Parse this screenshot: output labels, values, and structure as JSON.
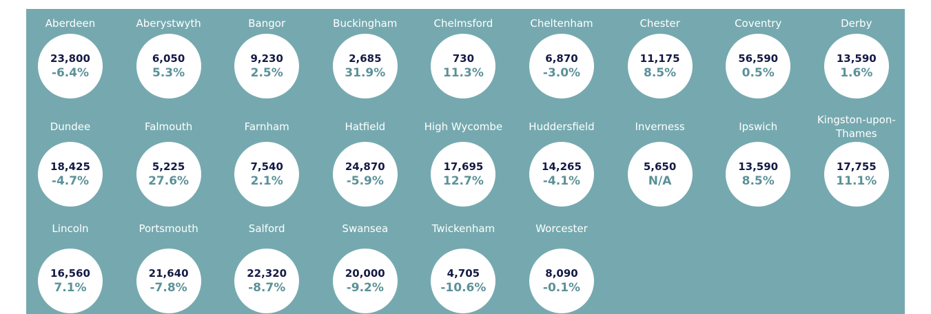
{
  "cities": [
    {
      "name": "Aberdeen",
      "value": "23,800",
      "change": "-6.4%"
    },
    {
      "name": "Aberystwyth",
      "value": "6,050",
      "change": "5.3%"
    },
    {
      "name": "Bangor",
      "value": "9,230",
      "change": "2.5%"
    },
    {
      "name": "Buckingham",
      "value": "2,685",
      "change": "31.9%"
    },
    {
      "name": "Chelmsford",
      "value": "730",
      "change": "11.3%"
    },
    {
      "name": "Cheltenham",
      "value": "6,870",
      "change": "-3.0%"
    },
    {
      "name": "Chester",
      "value": "11,175",
      "change": "8.5%"
    },
    {
      "name": "Coventry",
      "value": "56,590",
      "change": "0.5%"
    },
    {
      "name": "Derby",
      "value": "13,590",
      "change": "1.6%"
    },
    {
      "name": "Dundee",
      "value": "18,425",
      "change": "-4.7%"
    },
    {
      "name": "Falmouth",
      "value": "5,225",
      "change": "27.6%"
    },
    {
      "name": "Farnham",
      "value": "7,540",
      "change": "2.1%"
    },
    {
      "name": "Hatfield",
      "value": "24,870",
      "change": "-5.9%"
    },
    {
      "name": "High Wycombe",
      "value": "17,695",
      "change": "12.7%"
    },
    {
      "name": "Huddersfield",
      "value": "14,265",
      "change": "-4.1%"
    },
    {
      "name": "Inverness",
      "value": "5,650",
      "change": "N/A"
    },
    {
      "name": "Ipswich",
      "value": "13,590",
      "change": "8.5%"
    },
    {
      "name": "Kingston-upon-Thames",
      "value": "17,755",
      "change": "11.1%"
    },
    {
      "name": "Lincoln",
      "value": "16,560",
      "change": "7.1%"
    },
    {
      "name": "Portsmouth",
      "value": "21,640",
      "change": "-7.8%"
    },
    {
      "name": "Salford",
      "value": "22,320",
      "change": "-8.7%"
    },
    {
      "name": "Swansea",
      "value": "20,000",
      "change": "-9.2%"
    },
    {
      "name": "Twickenham",
      "value": "4,705",
      "change": "-10.6%"
    },
    {
      "name": "Worcester",
      "value": "8,090",
      "change": "-0.1%"
    }
  ]
}
